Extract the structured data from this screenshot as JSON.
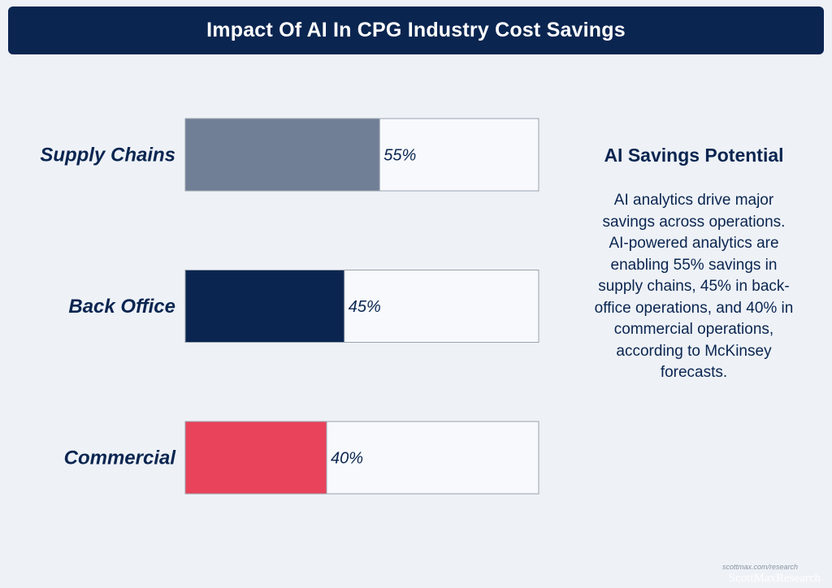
{
  "chart_data": {
    "type": "bar",
    "orientation": "horizontal",
    "title": "Impact Of AI In CPG Industry Cost Savings",
    "categories": [
      "Supply Chains",
      "Back Office",
      "Commercial"
    ],
    "values": [
      55,
      45,
      40
    ],
    "value_labels": [
      "55%",
      "45%",
      "40%"
    ],
    "xlim": [
      0,
      100
    ],
    "colors": [
      "#717f96",
      "#0a2550",
      "#e8435a"
    ],
    "xlabel": "",
    "ylabel": ""
  },
  "side_panel": {
    "heading": "AI Savings Potential",
    "body": "AI analytics drive major savings across operations. AI-powered analytics are enabling 55% savings in supply chains, 45% in back-office operations, and 40% in commercial operations, according to McKinsey forecasts."
  },
  "footer": {
    "source": "scottmax.com/research",
    "brand": "ScottMaxResearch"
  }
}
